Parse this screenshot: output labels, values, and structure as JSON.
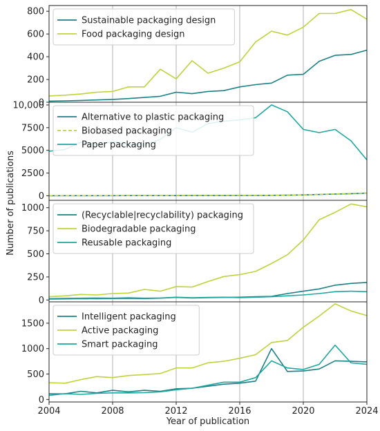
{
  "figure": {
    "xlabel": "Year of publication",
    "ylabel": "Number of publications"
  },
  "colors": {
    "dark_teal": "#1b7f86",
    "lime": "#bfd23c",
    "teal": "#1fa6a0",
    "grid": "#b0b0b0",
    "axis": "#222222"
  },
  "chart_data": [
    {
      "type": "line",
      "xlim": [
        2004,
        2024
      ],
      "ylim": [
        0,
        850
      ],
      "yticks": [
        0,
        200,
        400,
        600,
        800
      ],
      "ytick_labels": [
        "0",
        "200",
        "400",
        "600",
        "800"
      ],
      "legend_placement": "top-left",
      "x": [
        2004,
        2005,
        2006,
        2007,
        2008,
        2009,
        2010,
        2011,
        2012,
        2013,
        2014,
        2015,
        2016,
        2017,
        2018,
        2019,
        2020,
        2021,
        2022,
        2023,
        2024
      ],
      "series": [
        {
          "name": "Sustainable packaging design",
          "color": "dark_teal",
          "dash": false,
          "values": [
            10,
            12,
            16,
            20,
            25,
            32,
            42,
            52,
            88,
            75,
            95,
            102,
            135,
            155,
            168,
            238,
            245,
            360,
            412,
            420,
            458
          ]
        },
        {
          "name": "Food packaging design",
          "color": "lime",
          "dash": false,
          "values": [
            55,
            62,
            72,
            88,
            95,
            135,
            135,
            290,
            205,
            365,
            255,
            300,
            355,
            530,
            625,
            590,
            660,
            780,
            780,
            815,
            730
          ]
        }
      ]
    },
    {
      "type": "line",
      "xlim": [
        2004,
        2024
      ],
      "ylim": [
        -500,
        10300
      ],
      "yticks": [
        0,
        2500,
        5000,
        7500,
        10000
      ],
      "ytick_labels": [
        "0",
        "2500",
        "5000",
        "7500",
        "10,000"
      ],
      "legend_placement": "top-left",
      "x": [
        2004,
        2005,
        2006,
        2007,
        2008,
        2009,
        2010,
        2011,
        2012,
        2013,
        2014,
        2015,
        2016,
        2017,
        2018,
        2019,
        2020,
        2021,
        2022,
        2023,
        2024
      ],
      "series": [
        {
          "name": "Alternative to plastic packaging",
          "color": "dark_teal",
          "dash": false,
          "values": [
            5,
            6,
            8,
            10,
            12,
            14,
            16,
            18,
            20,
            22,
            25,
            28,
            32,
            36,
            45,
            60,
            90,
            140,
            190,
            230,
            290
          ]
        },
        {
          "name": "Biobased packaging",
          "color": "lime",
          "dash": true,
          "values": [
            8,
            9,
            10,
            12,
            14,
            16,
            18,
            20,
            22,
            25,
            28,
            32,
            36,
            40,
            50,
            70,
            100,
            150,
            200,
            250,
            310
          ]
        },
        {
          "name": "Paper packaging",
          "color": "teal",
          "dash": false,
          "values": [
            4900,
            5100,
            5900,
            5650,
            5950,
            5650,
            5600,
            6200,
            7500,
            7000,
            7950,
            8200,
            8350,
            8600,
            10000,
            9250,
            7300,
            6950,
            7300,
            6050,
            3950
          ]
        }
      ]
    },
    {
      "type": "line",
      "xlim": [
        2004,
        2024
      ],
      "ylim": [
        -20,
        1080
      ],
      "yticks": [
        0,
        250,
        500,
        750,
        1000
      ],
      "ytick_labels": [
        "0",
        "250",
        "500",
        "750",
        "1000"
      ],
      "legend_placement": "top-left",
      "x": [
        2004,
        2005,
        2006,
        2007,
        2008,
        2009,
        2010,
        2011,
        2012,
        2013,
        2014,
        2015,
        2016,
        2017,
        2018,
        2019,
        2020,
        2021,
        2022,
        2023,
        2024
      ],
      "series": [
        {
          "name": "(Recyclable|recyclability) packaging",
          "color": "dark_teal",
          "dash": false,
          "values": [
            10,
            12,
            15,
            14,
            16,
            18,
            15,
            20,
            28,
            22,
            25,
            28,
            30,
            35,
            40,
            70,
            95,
            120,
            160,
            180,
            190
          ]
        },
        {
          "name": "Biodegradable packaging",
          "color": "lime",
          "dash": false,
          "values": [
            35,
            45,
            60,
            55,
            70,
            75,
            115,
            95,
            145,
            140,
            200,
            255,
            275,
            310,
            395,
            490,
            650,
            870,
            950,
            1040,
            1010
          ]
        },
        {
          "name": "Reusable packaging",
          "color": "teal",
          "dash": false,
          "values": [
            15,
            18,
            20,
            22,
            20,
            25,
            20,
            22,
            30,
            25,
            28,
            30,
            25,
            30,
            35,
            45,
            55,
            70,
            90,
            95,
            90
          ]
        }
      ]
    },
    {
      "type": "line",
      "xlim": [
        2004,
        2024
      ],
      "ylim": [
        -50,
        1920
      ],
      "yticks": [
        0,
        500,
        1000,
        1500
      ],
      "ytick_labels": [
        "0",
        "500",
        "1000",
        "1500"
      ],
      "legend_placement": "top-left",
      "x": [
        2004,
        2005,
        2006,
        2007,
        2008,
        2009,
        2010,
        2011,
        2012,
        2013,
        2014,
        2015,
        2016,
        2017,
        2018,
        2019,
        2020,
        2021,
        2022,
        2023,
        2024
      ],
      "series": [
        {
          "name": "Intelligent packaging",
          "color": "dark_teal",
          "dash": false,
          "values": [
            110,
            110,
            160,
            130,
            180,
            150,
            180,
            160,
            210,
            220,
            260,
            300,
            320,
            360,
            1000,
            550,
            560,
            600,
            760,
            750,
            740
          ]
        },
        {
          "name": "Active packaging",
          "color": "lime",
          "dash": false,
          "values": [
            330,
            320,
            390,
            450,
            430,
            470,
            490,
            510,
            620,
            620,
            720,
            750,
            810,
            880,
            1120,
            1160,
            1420,
            1640,
            1880,
            1740,
            1650
          ]
        },
        {
          "name": "Smart packaging",
          "color": "teal",
          "dash": false,
          "values": [
            80,
            115,
            100,
            120,
            130,
            130,
            135,
            150,
            190,
            220,
            280,
            340,
            340,
            430,
            760,
            620,
            590,
            690,
            1070,
            720,
            690
          ]
        }
      ]
    }
  ],
  "xaxis": {
    "ticks": [
      2004,
      2008,
      2012,
      2016,
      2020,
      2024
    ],
    "tick_labels": [
      "2004",
      "2008",
      "2012",
      "2016",
      "2020",
      "2024"
    ]
  }
}
